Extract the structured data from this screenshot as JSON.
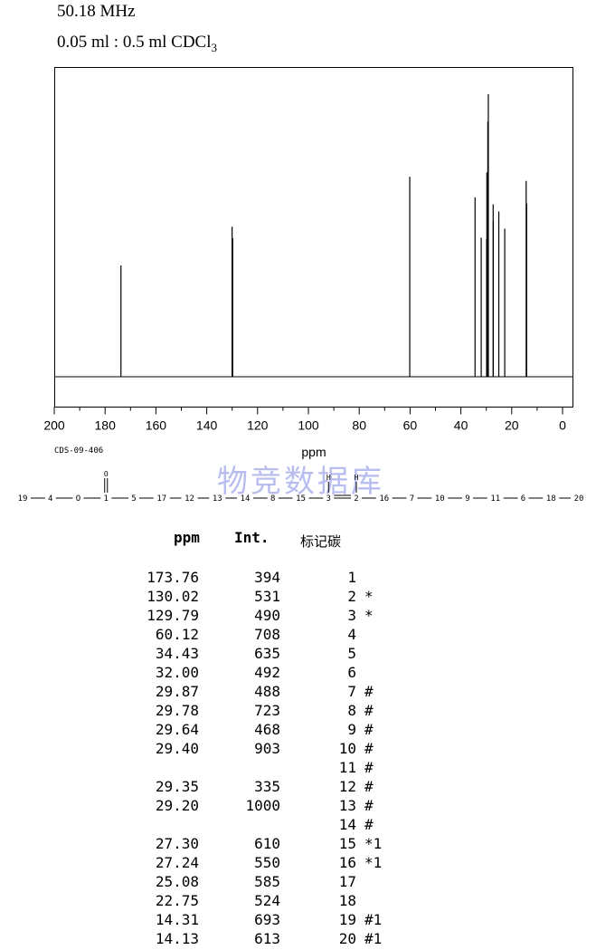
{
  "header": {
    "frequency": "50.18 MHz",
    "solvent_prefix": "0.05 ml : 0.5 ml CDCl",
    "solvent_sub": "3"
  },
  "code": "CDS-09-406",
  "watermark": "物竞数据库",
  "chart_data": {
    "type": "line",
    "title": "",
    "xlabel": "ppm",
    "xlim": [
      200,
      0
    ],
    "x_reversed": true,
    "x_ticks": [
      200,
      180,
      160,
      140,
      120,
      100,
      80,
      60,
      40,
      20,
      0
    ],
    "peaks": [
      {
        "ppm": 173.76,
        "intensity": 394
      },
      {
        "ppm": 130.02,
        "intensity": 531
      },
      {
        "ppm": 129.79,
        "intensity": 490
      },
      {
        "ppm": 60.12,
        "intensity": 708
      },
      {
        "ppm": 34.43,
        "intensity": 635
      },
      {
        "ppm": 32.0,
        "intensity": 492
      },
      {
        "ppm": 29.87,
        "intensity": 488
      },
      {
        "ppm": 29.78,
        "intensity": 723
      },
      {
        "ppm": 29.64,
        "intensity": 468
      },
      {
        "ppm": 29.4,
        "intensity": 903
      },
      {
        "ppm": 29.35,
        "intensity": 335
      },
      {
        "ppm": 29.2,
        "intensity": 1000
      },
      {
        "ppm": 27.3,
        "intensity": 610
      },
      {
        "ppm": 27.24,
        "intensity": 550
      },
      {
        "ppm": 25.08,
        "intensity": 585
      },
      {
        "ppm": 22.75,
        "intensity": 524
      },
      {
        "ppm": 14.31,
        "intensity": 693
      },
      {
        "ppm": 14.13,
        "intensity": 613
      }
    ]
  },
  "structure": {
    "chain": [
      "19",
      "4",
      "O",
      "1",
      "5",
      "17",
      "12",
      "13",
      "14",
      "8",
      "15",
      "3",
      "2",
      "16",
      "7",
      "10",
      "9",
      "11",
      "6",
      "18",
      "20"
    ],
    "carbonyl_label": "O",
    "h_label": "H",
    "h_label_2": "H"
  },
  "table": {
    "headers": {
      "ppm": "ppm",
      "int": "Int.",
      "carbon": "标记碳"
    },
    "rows": [
      {
        "ppm": "173.76",
        "int": "394",
        "carbon": "1",
        "mark": ""
      },
      {
        "ppm": "130.02",
        "int": "531",
        "carbon": "2",
        "mark": "*"
      },
      {
        "ppm": "129.79",
        "int": "490",
        "carbon": "3",
        "mark": "*"
      },
      {
        "ppm": "60.12",
        "int": "708",
        "carbon": "4",
        "mark": ""
      },
      {
        "ppm": "34.43",
        "int": "635",
        "carbon": "5",
        "mark": ""
      },
      {
        "ppm": "32.00",
        "int": "492",
        "carbon": "6",
        "mark": ""
      },
      {
        "ppm": "29.87",
        "int": "488",
        "carbon": "7",
        "mark": "#"
      },
      {
        "ppm": "29.78",
        "int": "723",
        "carbon": "8",
        "mark": "#"
      },
      {
        "ppm": "29.64",
        "int": "468",
        "carbon": "9",
        "mark": "#"
      },
      {
        "ppm": "29.40",
        "int": "903",
        "carbon": "10",
        "mark": "#"
      },
      {
        "ppm": "",
        "int": "",
        "carbon": "11",
        "mark": "#"
      },
      {
        "ppm": "29.35",
        "int": "335",
        "carbon": "12",
        "mark": "#"
      },
      {
        "ppm": "29.20",
        "int": "1000",
        "carbon": "13",
        "mark": "#"
      },
      {
        "ppm": "",
        "int": "",
        "carbon": "14",
        "mark": "#"
      },
      {
        "ppm": "27.30",
        "int": "610",
        "carbon": "15",
        "mark": "*1"
      },
      {
        "ppm": "27.24",
        "int": "550",
        "carbon": "16",
        "mark": "*1"
      },
      {
        "ppm": "25.08",
        "int": "585",
        "carbon": "17",
        "mark": ""
      },
      {
        "ppm": "22.75",
        "int": "524",
        "carbon": "18",
        "mark": ""
      },
      {
        "ppm": "14.31",
        "int": "693",
        "carbon": "19",
        "mark": "#1"
      },
      {
        "ppm": "14.13",
        "int": "613",
        "carbon": "20",
        "mark": "#1"
      }
    ]
  }
}
